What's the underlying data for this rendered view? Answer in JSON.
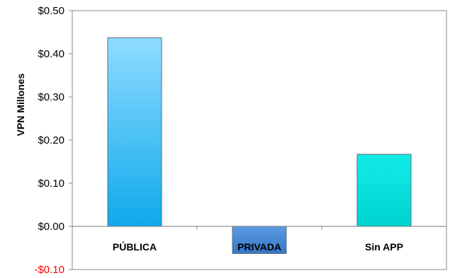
{
  "chart_data": {
    "type": "bar",
    "categories": [
      "PÚBLICA",
      "PRIVADA",
      "Sin APP"
    ],
    "values": [
      0.437,
      -0.063,
      0.167
    ],
    "colors": [
      "#29b6f6",
      "#3f85d6",
      "#00e0dc"
    ],
    "ylabel": "VPN Millones",
    "ylim": [
      -0.1,
      0.5
    ],
    "yticks": [
      0.5,
      0.4,
      0.3,
      0.2,
      0.1,
      0.0,
      -0.1
    ],
    "ytick_labels": [
      "$0.50",
      "$0.40",
      "$0.30",
      "$0.20",
      "$0.10",
      "$0.00",
      "-$0.10"
    ],
    "negative_tick_color": "#ff0000",
    "grid": false,
    "legend": "none"
  }
}
